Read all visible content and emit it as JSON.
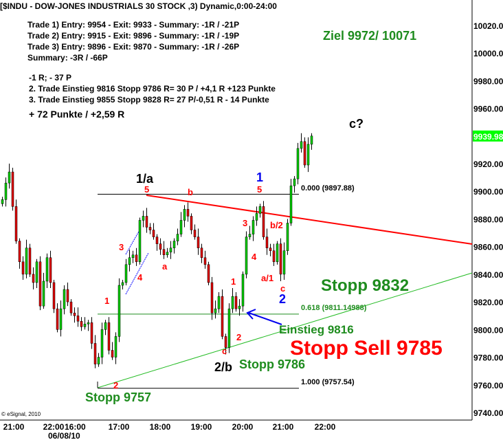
{
  "header": {
    "title": "[$INDU - DOW-JONES INDUSTRIALS 30 STOCK ,3) Dynamic,0:00-24:00"
  },
  "notes": {
    "trades": [
      "Trade 1) Entry: 9954 - Exit: 9933 - Summary: -1R / -21P",
      "Trade 2) Entry: 9915 - Exit: 9896 - Summary: -1R / -19P",
      "Trade 3) Entry: 9896 - Exit: 9870 - Summary: -1R / -26P",
      "Summary: -3R / -66P"
    ],
    "lines2": [
      "-1 R; - 37 P",
      "2. Trade Einstieg 9816 Stopp 9786 R= 30 P / +4,1 R +123 Punkte",
      "3. Trade Einstieg 9855 Stopp 9828 R= 27 P/-0,51 R - 14 Punkte"
    ],
    "total": "+ 72 Punkte / +2,59 R"
  },
  "copyright": "© eSignal, 2010",
  "colors": {
    "up": "#00cc00",
    "down": "#e00000",
    "label_green": "#1e8c1e",
    "label_red": "#ff0000",
    "last_price_bg": "#00ff00"
  },
  "chart_data": {
    "type": "candlestick",
    "ylim": [
      9740,
      10030
    ],
    "yticks": [
      "10020.00",
      "10000.00",
      "9980.00",
      "9960.00",
      "9920.00",
      "9900.00",
      "9880.00",
      "9860.00",
      "9840.00",
      "9820.00",
      "9800.00",
      "9780.00",
      "9760.00",
      "9740.00"
    ],
    "last_price": "9939.98",
    "xticks": [
      "21:00",
      "22:00",
      "16:00",
      "17:00",
      "18:00",
      "19:00",
      "20:00",
      "21:00",
      "22:00"
    ],
    "date_label": "06/08/10",
    "closes": [
      9894,
      9906,
      9914,
      9889,
      9864,
      9849,
      9840,
      9859,
      9840,
      9834,
      9849,
      9817,
      9835,
      9852,
      9834,
      9815,
      9800,
      9815,
      9829,
      9820,
      9812,
      9810,
      9806,
      9802,
      9804,
      9805,
      9790,
      9775,
      9780,
      9800,
      9805,
      9785,
      9780,
      9795,
      9832,
      9834,
      9847,
      9852,
      9854,
      9849,
      9879,
      9882,
      9874,
      9872,
      9867,
      9862,
      9858,
      9854,
      9856,
      9859,
      9864,
      9869,
      9879,
      9887,
      9882,
      9872,
      9867,
      9859,
      9852,
      9847,
      9834,
      9812,
      9815,
      9824,
      9795,
      9787,
      9815,
      9824,
      9815,
      9817,
      9840,
      9867,
      9869,
      9879,
      9884,
      9889,
      9867,
      9859,
      9857,
      9849,
      9862,
      9840,
      9857,
      9877,
      9904,
      9909,
      9931,
      9936,
      9919,
      9934,
      9940
    ],
    "fib_levels": [
      {
        "label": "0.000 (9897.88)",
        "value": 9897.88
      },
      {
        "label": "0.618 (9811.14988)",
        "value": 9811.14988
      },
      {
        "label": "1.000 (9757.54)",
        "value": 9757.54
      }
    ],
    "annotations": {
      "ziel": "Ziel 9972/ 10071",
      "c_q": "c?",
      "w1a": "1/a",
      "w5a": "5",
      "wb": "b",
      "w3a": "3",
      "w4a": "4",
      "wa": "a",
      "w1b": "1",
      "w2b": "2",
      "w1": "1",
      "w5b": "5",
      "w3b": "3",
      "w4b": "4",
      "wb2": "b/2",
      "wa1": "a/1",
      "wc1": "c",
      "w2": "2",
      "wc2": "c",
      "w2b_big": "2/b",
      "w1c": "1",
      "w2c": "2",
      "stopp9832": "Stopp 9832",
      "einstieg": "Einstieg 9816",
      "stoppsell": "Stopp Sell 9785",
      "stopp9786": "Stopp 9786",
      "stopp9757": "Stopp 9757"
    }
  }
}
